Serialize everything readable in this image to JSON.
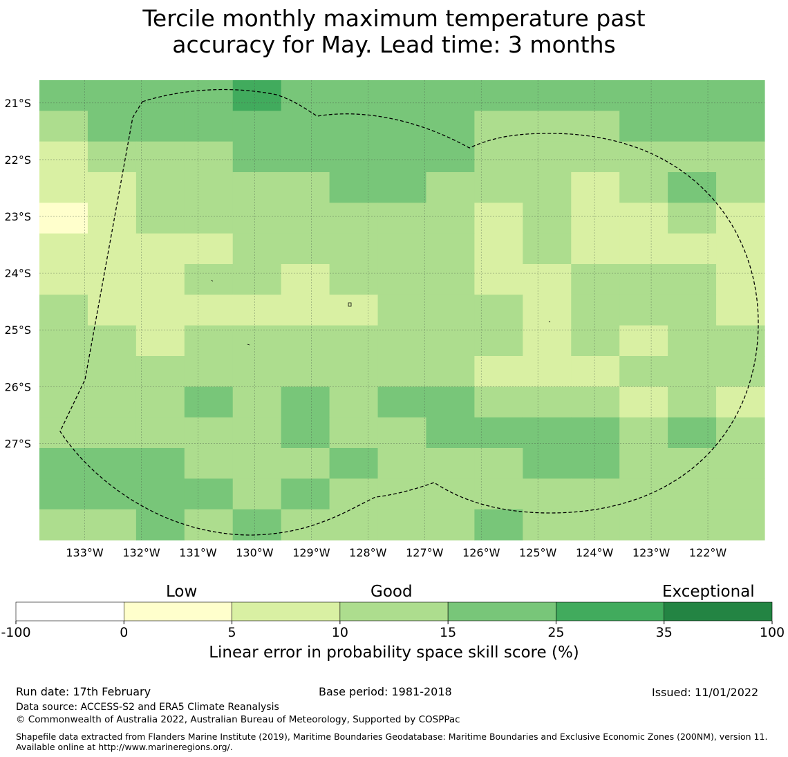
{
  "title": {
    "line1": "Tercile monthly maximum temperature past",
    "line2": "accuracy for May. Lead time: 3 months"
  },
  "map": {
    "lat_labels": [
      "21°S",
      "22°S",
      "23°S",
      "24°S",
      "25°S",
      "26°S",
      "27°S"
    ],
    "lon_labels": [
      "133°W",
      "132°W",
      "131°W",
      "130°W",
      "129°W",
      "128°W",
      "127°W",
      "126°W",
      "125°W",
      "124°W",
      "123°W",
      "122°W"
    ],
    "grid_values": [
      [
        3,
        3,
        3,
        3,
        4,
        3,
        3,
        3,
        3,
        3,
        3,
        3,
        3,
        3,
        3
      ],
      [
        2,
        3,
        3,
        3,
        3,
        3,
        3,
        3,
        3,
        2,
        2,
        2,
        3,
        3,
        3
      ],
      [
        1,
        2,
        2,
        2,
        3,
        3,
        3,
        3,
        3,
        2,
        2,
        2,
        2,
        2,
        2
      ],
      [
        1,
        1,
        2,
        2,
        2,
        2,
        3,
        3,
        2,
        2,
        2,
        1,
        2,
        3,
        2
      ],
      [
        0,
        1,
        2,
        2,
        2,
        2,
        2,
        2,
        2,
        1,
        2,
        1,
        1,
        2,
        1
      ],
      [
        1,
        1,
        1,
        1,
        2,
        2,
        2,
        2,
        2,
        1,
        2,
        1,
        1,
        1,
        1
      ],
      [
        1,
        1,
        1,
        2,
        2,
        1,
        2,
        2,
        2,
        1,
        1,
        2,
        2,
        2,
        1
      ],
      [
        2,
        1,
        1,
        1,
        1,
        1,
        1,
        2,
        2,
        2,
        1,
        2,
        2,
        2,
        1
      ],
      [
        2,
        2,
        1,
        2,
        2,
        2,
        2,
        2,
        2,
        2,
        1,
        2,
        1,
        2,
        2
      ],
      [
        2,
        2,
        2,
        2,
        2,
        2,
        2,
        2,
        2,
        1,
        1,
        1,
        2,
        2,
        2
      ],
      [
        2,
        2,
        2,
        3,
        2,
        3,
        2,
        3,
        3,
        2,
        2,
        2,
        1,
        2,
        1
      ],
      [
        2,
        2,
        2,
        2,
        2,
        3,
        2,
        2,
        3,
        3,
        3,
        3,
        2,
        3,
        2
      ],
      [
        3,
        3,
        3,
        2,
        2,
        2,
        3,
        2,
        2,
        2,
        3,
        3,
        2,
        2,
        2
      ],
      [
        3,
        3,
        3,
        3,
        2,
        3,
        2,
        2,
        2,
        2,
        2,
        2,
        2,
        2,
        2
      ],
      [
        2,
        2,
        3,
        2,
        3,
        2,
        2,
        2,
        2,
        3,
        2,
        2,
        2,
        2,
        2
      ]
    ],
    "extent": {
      "lon_west": -133.8,
      "lon_east": -121.0,
      "lat_north": -20.6,
      "lat_south": -28.7
    }
  },
  "colorbar": {
    "category_low": "Low",
    "category_good": "Good",
    "category_exceptional": "Exceptional",
    "ticks": [
      "-100",
      "0",
      "5",
      "10",
      "15",
      "25",
      "35",
      "100"
    ],
    "colors": [
      "#ffffff",
      "#ffffcc",
      "#d9f0a3",
      "#addd8e",
      "#78c679",
      "#41ab5d",
      "#238443"
    ],
    "axis_title": "Linear error in probability space skill score (%)"
  },
  "footer": {
    "run_date": "Run date: 17th February",
    "base_period": "Base period: 1981-2018",
    "issued": "Issued: 11/01/2022",
    "data_source": "Data source: ACCESS-S2 and ERA5 Climate Reanalysis",
    "copyright": "© Commonwealth of Australia 2022, Australian Bureau of Meteorology, Supported by COSPPac",
    "shapefile": "Shapefile data extracted from Flanders Marine Institute (2019), Maritime Boundaries Geodatabase: Maritime Boundaries and Exclusive Economic Zones (200NM), version 11. Available online at http://www.marineregions.org/."
  }
}
